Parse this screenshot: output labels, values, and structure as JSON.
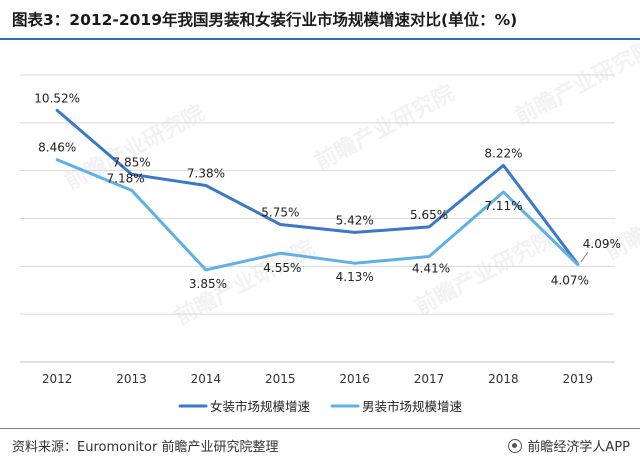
{
  "title": "图表3：2012-2019年我国男装和女装行业市场规模增速对比(单位：%)",
  "source": "资料来源：Euromonitor  前瞻产业研究院整理",
  "brand": "前瞻经济学人APP",
  "watermark_text": "前瞻产业研究院",
  "colors": {
    "women": "#3a78c9",
    "men": "#5fb0e6",
    "grid": "#d9d9d9",
    "accent": "#2f6fb8"
  },
  "chart_data": {
    "type": "line",
    "x": [
      "2012",
      "2013",
      "2014",
      "2015",
      "2016",
      "2017",
      "2018",
      "2019"
    ],
    "ylim": [
      0,
      12
    ],
    "grid": true,
    "legend_position": "bottom",
    "series": [
      {
        "name": "女装市场规模增速",
        "values": [
          10.52,
          7.85,
          7.38,
          5.75,
          5.42,
          5.65,
          8.22,
          4.09
        ],
        "labels": [
          "10.52%",
          "7.85%",
          "7.38%",
          "5.75%",
          "5.42%",
          "5.65%",
          "8.22%",
          "4.09%"
        ]
      },
      {
        "name": "男装市场规模增速",
        "values": [
          8.46,
          7.18,
          3.85,
          4.55,
          4.13,
          4.41,
          7.11,
          4.07
        ],
        "labels": [
          "8.46%",
          "7.18%",
          "3.85%",
          "4.55%",
          "4.13%",
          "4.41%",
          "7.11%",
          "4.07%"
        ]
      }
    ]
  }
}
